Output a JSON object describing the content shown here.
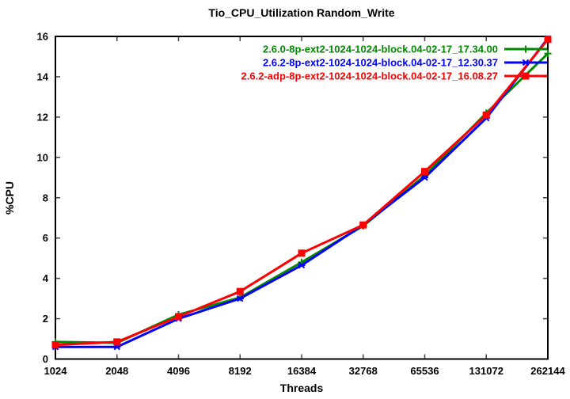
{
  "title": "Tio_CPU_Utilization Random_Write",
  "axes": {
    "xlabel": "Threads",
    "ylabel": "%CPU"
  },
  "colors": {
    "series_green": "#008a00",
    "series_blue": "#0000ff",
    "series_red": "#ff0000",
    "border": "#000000",
    "tick": "#444444"
  },
  "chart_data": {
    "type": "line",
    "title": "Tio_CPU_Utilization Random_Write",
    "xlabel": "Threads",
    "ylabel": "%CPU",
    "x_scale": "log2",
    "categories": [
      "1024",
      "2048",
      "4096",
      "8192",
      "16384",
      "32768",
      "65536",
      "131072",
      "262144"
    ],
    "ylim": [
      0,
      16
    ],
    "ytick_step": 2,
    "ytick_labels": [
      "0",
      "2",
      "4",
      "6",
      "8",
      "10",
      "12",
      "14",
      "16"
    ],
    "grid": false,
    "legend_position": "top-right-inside",
    "series": [
      {
        "name": "2.6.0-8p-ext2-1024-1024-block.04-02-17_17.34.00",
        "color": "#008a00",
        "marker": "plus",
        "values": [
          0.85,
          0.8,
          2.2,
          3.05,
          4.8,
          6.6,
          9.1,
          12.2,
          15.15
        ]
      },
      {
        "name": "2.6.2-8p-ext2-1024-1024-block.04-02-17_12.30.37",
        "color": "#0000ff",
        "marker": "cross",
        "values": [
          0.6,
          0.6,
          2.0,
          3.0,
          4.65,
          6.65,
          9.0,
          11.95,
          15.9
        ]
      },
      {
        "name": "2.6.2-adp-8p-ext2-1024-1024-block.04-02-17_16.08.27",
        "color": "#ff0000",
        "marker": "square",
        "values": [
          0.7,
          0.85,
          2.1,
          3.35,
          5.25,
          6.65,
          9.3,
          12.1,
          15.85
        ]
      }
    ]
  }
}
